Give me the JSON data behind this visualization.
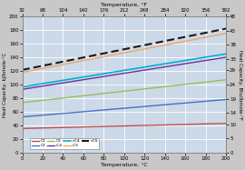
{
  "title_top": "Temperature, °F",
  "xlabel": "Temperature, °C",
  "ylabel_left": "Heat Capacity, kJ/kmole-°C",
  "ylabel_right": "Heat Capacity, Btu/lbmole-°F",
  "x_degC": [
    0,
    20,
    40,
    60,
    80,
    100,
    120,
    140,
    160,
    180,
    200
  ],
  "x_degF_ticks": [
    32,
    68,
    104,
    140,
    176,
    212,
    248,
    284,
    320,
    356,
    392
  ],
  "ylim_left": [
    0,
    200
  ],
  "ylim_right": [
    0,
    48
  ],
  "yticks_left": [
    0,
    20,
    40,
    60,
    80,
    100,
    120,
    140,
    160,
    180,
    200
  ],
  "yticks_right": [
    0,
    5,
    10,
    14,
    19,
    24,
    29,
    33,
    38,
    43,
    48
  ],
  "series": {
    "C1": {
      "start": 35.5,
      "end": 43.0,
      "color": "#c0504d",
      "lw": 1.0,
      "ls": "-"
    },
    "C2": {
      "start": 52.5,
      "end": 78.0,
      "color": "#4472c4",
      "lw": 1.0,
      "ls": "-"
    },
    "C3": {
      "start": 73.5,
      "end": 107.0,
      "color": "#9bbb59",
      "lw": 1.0,
      "ls": "-"
    },
    "iC4": {
      "start": 93.0,
      "end": 140.0,
      "color": "#7030a0",
      "lw": 1.0,
      "ls": "-"
    },
    "nC4": {
      "start": 96.5,
      "end": 145.0,
      "color": "#00b0d0",
      "lw": 1.2,
      "ls": "-"
    },
    "iC5": {
      "start": 118.0,
      "end": 175.0,
      "color": "#f4a460",
      "lw": 1.0,
      "ls": "-"
    },
    "nC5": {
      "start": 121.5,
      "end": 182.0,
      "color": "#1a1a1a",
      "lw": 1.5,
      "ls": "--"
    }
  },
  "plot_bg": "#ccd9e8",
  "grid_color": "#ffffff",
  "fig_bg": "#c8c8c8",
  "border_color": "#888888"
}
